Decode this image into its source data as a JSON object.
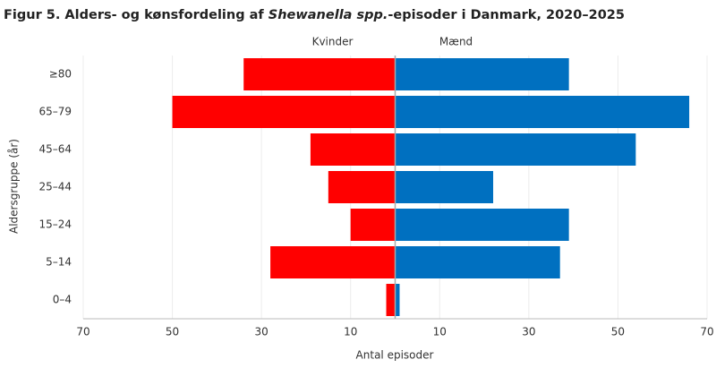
{
  "chart_data": {
    "type": "bar",
    "orientation": "horizontal",
    "title": [
      "Figur 5. Alders- og kønsfordeling af ",
      "Shewanella spp.",
      "-episoder i Danmark, 2020–2025"
    ],
    "x_label": "Antal episoder",
    "y_label": "Aldersgruppe (år)",
    "categories": [
      "≥80",
      "65–79",
      "45–64",
      "25–44",
      "15–24",
      "5–14",
      "0–4"
    ],
    "series": [
      {
        "name": "Kvinder",
        "color": "#ff0000",
        "values": [
          -34,
          -50,
          -19,
          -15,
          -10,
          -28,
          -2
        ]
      },
      {
        "name": "Mænd",
        "color": "#0070c0",
        "values": [
          39,
          66,
          54,
          22,
          39,
          37,
          1
        ]
      }
    ],
    "xlim": [
      -70,
      70
    ],
    "xticks": [
      {
        "value": -70,
        "label": "70"
      },
      {
        "value": -50,
        "label": "50"
      },
      {
        "value": -30,
        "label": "30"
      },
      {
        "value": -10,
        "label": "10"
      },
      10,
      30,
      50,
      70
    ],
    "grid": true
  }
}
